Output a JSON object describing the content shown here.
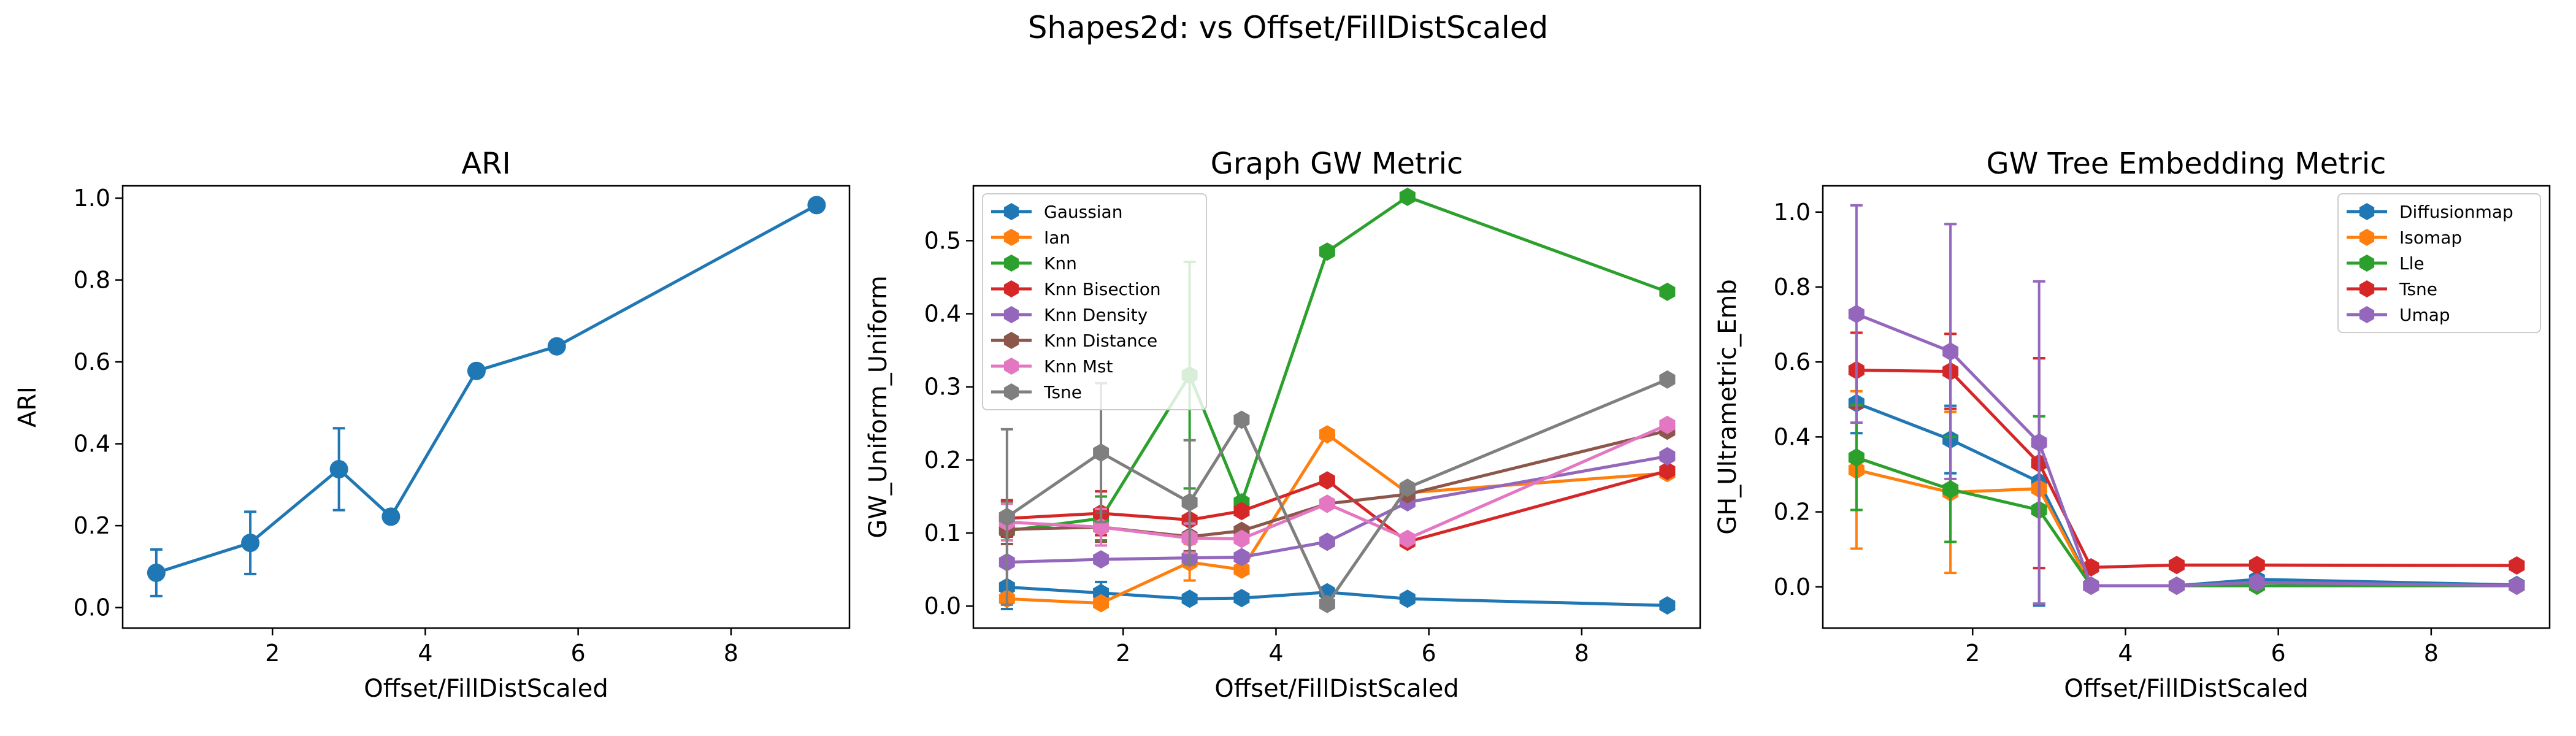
{
  "figure_title": "Shapes2d: vs Offset/FillDistScaled",
  "chart_data": [
    {
      "type": "line",
      "title": "ARI",
      "xlabel": "Offset/FillDistScaled",
      "ylabel": "ARI",
      "xlim": [
        0.04,
        9.55
      ],
      "ylim": [
        -0.05,
        1.03
      ],
      "xticks": [
        2,
        4,
        6,
        8
      ],
      "xtick_labels": [
        "2",
        "4",
        "6",
        "8"
      ],
      "yticks": [
        0.0,
        0.2,
        0.4,
        0.6,
        0.8,
        1.0
      ],
      "ytick_labels": [
        "0.0",
        "0.2",
        "0.4",
        "0.6",
        "0.8",
        "1.0"
      ],
      "legend": null,
      "series": [
        {
          "color": "#1f77b4",
          "x": [
            0.48,
            1.71,
            2.87,
            3.55,
            4.67,
            5.72,
            9.12
          ],
          "y": [
            0.085,
            0.158,
            0.338,
            0.222,
            0.578,
            0.638,
            0.983
          ],
          "err": [
            0.057,
            0.076,
            0.1,
            0.0,
            0.0,
            0.0,
            0.0
          ]
        }
      ]
    },
    {
      "type": "line",
      "title": "Graph GW Metric",
      "xlabel": "Offset/FillDistScaled",
      "ylabel": "GW_Uniform_Uniform",
      "xlim": [
        0.04,
        9.55
      ],
      "ylim": [
        -0.03,
        0.575
      ],
      "xticks": [
        2,
        4,
        6,
        8
      ],
      "xtick_labels": [
        "2",
        "4",
        "6",
        "8"
      ],
      "yticks": [
        0.0,
        0.1,
        0.2,
        0.3,
        0.4,
        0.5
      ],
      "ytick_labels": [
        "0.0",
        "0.1",
        "0.2",
        "0.3",
        "0.4",
        "0.5"
      ],
      "legend": "upper-left",
      "series": [
        {
          "name": "Gaussian",
          "color": "#1f77b4",
          "x": [
            0.48,
            1.71,
            2.87,
            3.55,
            4.67,
            5.72,
            9.12
          ],
          "y": [
            0.026,
            0.018,
            0.01,
            0.011,
            0.019,
            0.01,
            0.001
          ],
          "err": [
            0.03,
            0.015,
            0.0,
            0.0,
            0.0,
            0.0,
            0.0
          ]
        },
        {
          "name": "Ian",
          "color": "#ff7f0e",
          "x": [
            0.48,
            1.71,
            2.87,
            3.55,
            4.67,
            5.72,
            9.12
          ],
          "y": [
            0.01,
            0.004,
            0.06,
            0.05,
            0.235,
            0.155,
            0.182
          ],
          "err": [
            0.0,
            0.0,
            0.025,
            0.0,
            0.0,
            0.0,
            0.0
          ]
        },
        {
          "name": "Knn",
          "color": "#2ca02c",
          "x": [
            0.48,
            1.71,
            2.87,
            3.55,
            4.67,
            5.72,
            9.12
          ],
          "y": [
            0.103,
            0.12,
            0.316,
            0.142,
            0.485,
            0.56,
            0.43
          ],
          "err": [
            0.04,
            0.03,
            0.155,
            0.0,
            0.0,
            0.0,
            0.0
          ]
        },
        {
          "name": "Knn Bisection",
          "color": "#d62728",
          "x": [
            0.48,
            1.71,
            2.87,
            3.55,
            4.67,
            5.72,
            9.12
          ],
          "y": [
            0.12,
            0.127,
            0.118,
            0.13,
            0.172,
            0.088,
            0.185
          ],
          "err": [
            0.025,
            0.03,
            0.025,
            0.0,
            0.0,
            0.0,
            0.0
          ]
        },
        {
          "name": "Knn Density",
          "color": "#9467bd",
          "x": [
            0.48,
            1.71,
            2.87,
            3.55,
            4.67,
            5.72,
            9.12
          ],
          "y": [
            0.06,
            0.064,
            0.066,
            0.067,
            0.088,
            0.142,
            0.205
          ],
          "err": [
            0.0,
            0.0,
            0.0,
            0.0,
            0.0,
            0.0,
            0.0
          ]
        },
        {
          "name": "Knn Distance",
          "color": "#8c564b",
          "x": [
            0.48,
            1.71,
            2.87,
            3.55,
            4.67,
            5.72,
            9.12
          ],
          "y": [
            0.105,
            0.108,
            0.095,
            0.103,
            0.14,
            0.153,
            0.24
          ],
          "err": [
            0.02,
            0.02,
            0.02,
            0.0,
            0.0,
            0.0,
            0.0
          ]
        },
        {
          "name": "Knn Mst",
          "color": "#e377c2",
          "x": [
            0.48,
            1.71,
            2.87,
            3.55,
            4.67,
            5.72,
            9.12
          ],
          "y": [
            0.115,
            0.108,
            0.093,
            0.092,
            0.14,
            0.092,
            0.248
          ],
          "err": [
            0.025,
            0.025,
            0.02,
            0.0,
            0.0,
            0.0,
            0.0
          ]
        },
        {
          "name": "Tsne",
          "color": "#7f7f7f",
          "x": [
            0.48,
            1.71,
            2.87,
            3.55,
            4.67,
            5.72,
            9.12
          ],
          "y": [
            0.122,
            0.21,
            0.142,
            0.255,
            0.003,
            0.162,
            0.31
          ],
          "err": [
            0.12,
            0.095,
            0.085,
            0.0,
            0.0,
            0.0,
            0.0
          ]
        }
      ]
    },
    {
      "type": "line",
      "title": "GW Tree Embedding Metric",
      "xlabel": "Offset/FillDistScaled",
      "ylabel": "GH_Ultrametric_Emb",
      "xlim": [
        0.04,
        9.55
      ],
      "ylim": [
        -0.11,
        1.07
      ],
      "xticks": [
        2,
        4,
        6,
        8
      ],
      "xtick_labels": [
        "2",
        "4",
        "6",
        "8"
      ],
      "yticks": [
        0.0,
        0.2,
        0.4,
        0.6,
        0.8,
        1.0
      ],
      "ytick_labels": [
        "0.0",
        "0.2",
        "0.4",
        "0.6",
        "0.8",
        "1.0"
      ],
      "legend": "upper-right",
      "series": [
        {
          "name": "Diffusionmap",
          "color": "#1f77b4",
          "x": [
            0.48,
            1.71,
            2.87,
            3.55,
            4.67,
            5.72,
            9.12
          ],
          "y": [
            0.49,
            0.393,
            0.28,
            0.003,
            0.003,
            0.02,
            0.005
          ],
          "err": [
            0.08,
            0.09,
            0.33,
            0.0,
            0.0,
            0.0,
            0.0
          ]
        },
        {
          "name": "Isomap",
          "color": "#ff7f0e",
          "x": [
            0.48,
            1.71,
            2.87,
            3.55,
            4.67,
            5.72,
            9.12
          ],
          "y": [
            0.312,
            0.252,
            0.262,
            0.003,
            0.003,
            0.003,
            0.003
          ],
          "err": [
            0.21,
            0.215,
            0.0,
            0.0,
            0.0,
            0.0,
            0.0
          ]
        },
        {
          "name": "Lle",
          "color": "#2ca02c",
          "x": [
            0.48,
            1.71,
            2.87,
            3.55,
            4.67,
            5.72,
            9.12
          ],
          "y": [
            0.345,
            0.26,
            0.205,
            0.003,
            0.003,
            0.003,
            0.003
          ],
          "err": [
            0.14,
            0.14,
            0.25,
            0.0,
            0.0,
            0.0,
            0.0
          ]
        },
        {
          "name": "Tsne",
          "color": "#d62728",
          "x": [
            0.48,
            1.71,
            2.87,
            3.55,
            4.67,
            5.72,
            9.12
          ],
          "y": [
            0.578,
            0.575,
            0.33,
            0.052,
            0.058,
            0.058,
            0.057
          ],
          "err": [
            0.1,
            0.1,
            0.28,
            0.0,
            0.0,
            0.0,
            0.0
          ]
        },
        {
          "name": "Umap",
          "color": "#9467bd",
          "x": [
            0.48,
            1.71,
            2.87,
            3.55,
            4.67,
            5.72,
            9.12
          ],
          "y": [
            0.728,
            0.628,
            0.385,
            0.003,
            0.003,
            0.012,
            0.003
          ],
          "err": [
            0.29,
            0.34,
            0.43,
            0.0,
            0.0,
            0.0,
            0.0
          ]
        }
      ]
    }
  ]
}
